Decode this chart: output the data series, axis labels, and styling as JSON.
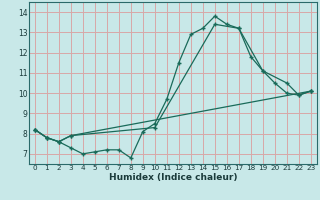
{
  "xlabel": "Humidex (Indice chaleur)",
  "bg_color": "#c8e8e8",
  "grid_color": "#d8a8a8",
  "line_color": "#1a6b5a",
  "xlim": [
    -0.5,
    23.5
  ],
  "ylim": [
    6.5,
    14.5
  ],
  "xticks": [
    0,
    1,
    2,
    3,
    4,
    5,
    6,
    7,
    8,
    9,
    10,
    11,
    12,
    13,
    14,
    15,
    16,
    17,
    18,
    19,
    20,
    21,
    22,
    23
  ],
  "yticks": [
    7,
    8,
    9,
    10,
    11,
    12,
    13,
    14
  ],
  "line1_x": [
    0,
    1,
    2,
    3,
    4,
    5,
    6,
    7,
    8,
    9,
    10,
    11,
    12,
    13,
    14,
    15,
    16,
    17,
    18,
    19,
    20,
    21,
    22,
    23
  ],
  "line1_y": [
    8.2,
    7.8,
    7.6,
    7.3,
    7.0,
    7.1,
    7.2,
    7.2,
    6.8,
    8.1,
    8.5,
    9.7,
    11.5,
    12.9,
    13.2,
    13.8,
    13.4,
    13.2,
    11.8,
    11.1,
    10.5,
    10.0,
    9.9,
    10.1
  ],
  "line2_x": [
    0,
    1,
    2,
    3,
    10,
    15,
    17,
    19,
    21,
    22,
    23
  ],
  "line2_y": [
    8.2,
    7.8,
    7.6,
    7.9,
    8.3,
    13.4,
    13.2,
    11.1,
    10.5,
    9.9,
    10.1
  ],
  "line3_x": [
    0,
    1,
    2,
    3,
    23
  ],
  "line3_y": [
    8.2,
    7.8,
    7.6,
    7.9,
    10.1
  ]
}
